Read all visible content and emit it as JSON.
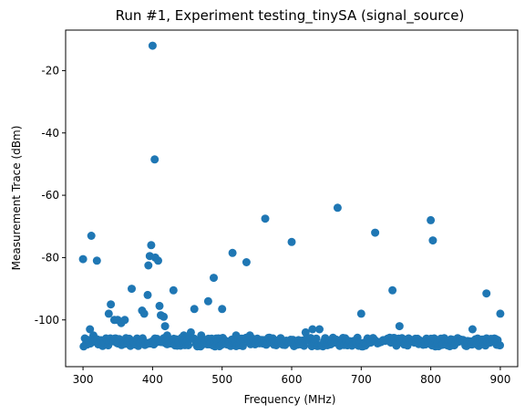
{
  "chart_data": {
    "type": "scatter",
    "title": "Run #1, Experiment testing_tinySA (signal_source)",
    "xlabel": "Frequency (MHz)",
    "ylabel": "Measurement Trace (dBm)",
    "xlim": [
      275,
      925
    ],
    "ylim": [
      -115,
      -7
    ],
    "xticks": [
      300,
      400,
      500,
      600,
      700,
      800,
      900
    ],
    "yticks": [
      -100,
      -80,
      -60,
      -40,
      -20
    ],
    "grid": false,
    "marker_color": "#1f77b4",
    "series": [
      {
        "points": [
          [
            300,
            -80.5
          ],
          [
            312,
            -73
          ],
          [
            320,
            -81
          ],
          [
            340,
            -95
          ],
          [
            337,
            -98
          ],
          [
            345,
            -100
          ],
          [
            350,
            -100
          ],
          [
            355,
            -101
          ],
          [
            360,
            -100
          ],
          [
            370,
            -90
          ],
          [
            385,
            -97
          ],
          [
            388,
            -98
          ],
          [
            393,
            -92
          ],
          [
            394,
            -82.5
          ],
          [
            396,
            -79.5
          ],
          [
            398,
            -76
          ],
          [
            400,
            -12
          ],
          [
            403,
            -48.5
          ],
          [
            404,
            -80
          ],
          [
            408,
            -81
          ],
          [
            410,
            -95.5
          ],
          [
            412,
            -98.5
          ],
          [
            416,
            -99
          ],
          [
            418,
            -102
          ],
          [
            421,
            -105
          ],
          [
            430,
            -90.5
          ],
          [
            445,
            -105
          ],
          [
            455,
            -104
          ],
          [
            460,
            -96.5
          ],
          [
            470,
            -105
          ],
          [
            480,
            -94
          ],
          [
            488,
            -86.5
          ],
          [
            500,
            -96.5
          ],
          [
            515,
            -78.5
          ],
          [
            520,
            -105
          ],
          [
            535,
            -81.5
          ],
          [
            540,
            -105
          ],
          [
            562,
            -67.5
          ],
          [
            600,
            -75
          ],
          [
            620,
            -104
          ],
          [
            630,
            -103
          ],
          [
            640,
            -103
          ],
          [
            666,
            -64
          ],
          [
            700,
            -98
          ],
          [
            720,
            -72
          ],
          [
            745,
            -90.5
          ],
          [
            755,
            -102
          ],
          [
            800,
            -68
          ],
          [
            803,
            -74.5
          ],
          [
            860,
            -103
          ],
          [
            880,
            -91.5
          ],
          [
            900,
            -98
          ],
          [
            310,
            -103
          ],
          [
            315,
            -105
          ]
        ]
      }
    ]
  }
}
